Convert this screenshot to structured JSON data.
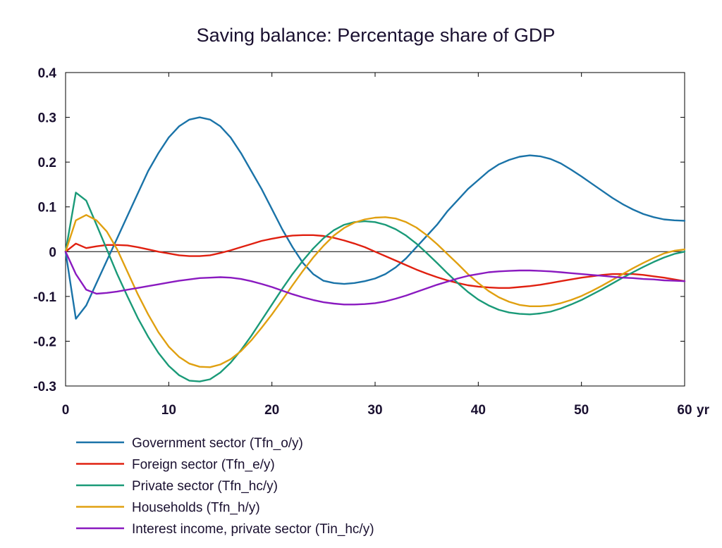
{
  "chart_data": {
    "type": "line",
    "title": "Saving balance: Percentage share of GDP",
    "xlabel": "",
    "ylabel": "",
    "x_unit_label": "yr",
    "xlim": [
      0,
      60
    ],
    "ylim": [
      -0.3,
      0.4
    ],
    "x_ticks": [
      "0",
      "10",
      "20",
      "30",
      "40",
      "50",
      "60"
    ],
    "y_ticks": [
      "0.4",
      "0.3",
      "0.2",
      "0.1",
      "0",
      "-0.1",
      "-0.2",
      "-0.3"
    ],
    "zero_line": true,
    "grid": false,
    "legend_position": "bottom",
    "series": [
      {
        "name": "Government sector (Tfn_o/y)",
        "color": "#1a73a8",
        "points": [
          [
            0,
            0
          ],
          [
            1,
            -0.15
          ],
          [
            2,
            -0.12
          ],
          [
            3,
            -0.07
          ],
          [
            4,
            -0.02
          ],
          [
            5,
            0.03
          ],
          [
            6,
            0.08
          ],
          [
            7,
            0.13
          ],
          [
            8,
            0.18
          ],
          [
            9,
            0.22
          ],
          [
            10,
            0.255
          ],
          [
            11,
            0.28
          ],
          [
            12,
            0.295
          ],
          [
            13,
            0.3
          ],
          [
            14,
            0.295
          ],
          [
            15,
            0.28
          ],
          [
            16,
            0.255
          ],
          [
            17,
            0.22
          ],
          [
            18,
            0.18
          ],
          [
            19,
            0.14
          ],
          [
            20,
            0.095
          ],
          [
            21,
            0.05
          ],
          [
            22,
            0.01
          ],
          [
            23,
            -0.025
          ],
          [
            24,
            -0.05
          ],
          [
            25,
            -0.065
          ],
          [
            26,
            -0.07
          ],
          [
            27,
            -0.072
          ],
          [
            28,
            -0.07
          ],
          [
            29,
            -0.066
          ],
          [
            30,
            -0.06
          ],
          [
            31,
            -0.05
          ],
          [
            32,
            -0.035
          ],
          [
            33,
            -0.015
          ],
          [
            34,
            0.01
          ],
          [
            35,
            0.035
          ],
          [
            36,
            0.06
          ],
          [
            37,
            0.09
          ],
          [
            38,
            0.115
          ],
          [
            39,
            0.14
          ],
          [
            40,
            0.16
          ],
          [
            41,
            0.18
          ],
          [
            42,
            0.195
          ],
          [
            43,
            0.205
          ],
          [
            44,
            0.212
          ],
          [
            45,
            0.215
          ],
          [
            46,
            0.213
          ],
          [
            47,
            0.207
          ],
          [
            48,
            0.197
          ],
          [
            49,
            0.183
          ],
          [
            50,
            0.168
          ],
          [
            51,
            0.152
          ],
          [
            52,
            0.136
          ],
          [
            53,
            0.12
          ],
          [
            54,
            0.106
          ],
          [
            55,
            0.094
          ],
          [
            56,
            0.084
          ],
          [
            57,
            0.077
          ],
          [
            58,
            0.072
          ],
          [
            59,
            0.07
          ],
          [
            60,
            0.069
          ]
        ]
      },
      {
        "name": "Foreign sector (Tfn_e/y)",
        "color": "#e02010",
        "points": [
          [
            0,
            0
          ],
          [
            1,
            0.018
          ],
          [
            2,
            0.008
          ],
          [
            3,
            0.012
          ],
          [
            4,
            0.015
          ],
          [
            5,
            0.015
          ],
          [
            6,
            0.014
          ],
          [
            7,
            0.01
          ],
          [
            8,
            0.005
          ],
          [
            9,
            0
          ],
          [
            10,
            -0.004
          ],
          [
            11,
            -0.008
          ],
          [
            12,
            -0.01
          ],
          [
            13,
            -0.01
          ],
          [
            14,
            -0.008
          ],
          [
            15,
            -0.003
          ],
          [
            16,
            0.003
          ],
          [
            17,
            0.01
          ],
          [
            18,
            0.017
          ],
          [
            19,
            0.024
          ],
          [
            20,
            0.029
          ],
          [
            21,
            0.033
          ],
          [
            22,
            0.036
          ],
          [
            23,
            0.037
          ],
          [
            24,
            0.037
          ],
          [
            25,
            0.035
          ],
          [
            26,
            0.031
          ],
          [
            27,
            0.025
          ],
          [
            28,
            0.018
          ],
          [
            29,
            0.01
          ],
          [
            30,
            0
          ],
          [
            31,
            -0.01
          ],
          [
            32,
            -0.02
          ],
          [
            33,
            -0.03
          ],
          [
            34,
            -0.04
          ],
          [
            35,
            -0.049
          ],
          [
            36,
            -0.057
          ],
          [
            37,
            -0.064
          ],
          [
            38,
            -0.07
          ],
          [
            39,
            -0.075
          ],
          [
            40,
            -0.078
          ],
          [
            41,
            -0.08
          ],
          [
            42,
            -0.081
          ],
          [
            43,
            -0.081
          ],
          [
            44,
            -0.079
          ],
          [
            45,
            -0.077
          ],
          [
            46,
            -0.074
          ],
          [
            47,
            -0.07
          ],
          [
            48,
            -0.066
          ],
          [
            49,
            -0.062
          ],
          [
            50,
            -0.058
          ],
          [
            51,
            -0.055
          ],
          [
            52,
            -0.052
          ],
          [
            53,
            -0.05
          ],
          [
            54,
            -0.05
          ],
          [
            55,
            -0.05
          ],
          [
            56,
            -0.052
          ],
          [
            57,
            -0.055
          ],
          [
            58,
            -0.058
          ],
          [
            59,
            -0.062
          ],
          [
            60,
            -0.066
          ]
        ]
      },
      {
        "name": "Private sector (Tfn_hc/y)",
        "color": "#1a9a78",
        "points": [
          [
            0,
            0
          ],
          [
            1,
            0.132
          ],
          [
            2,
            0.114
          ],
          [
            3,
            0.06
          ],
          [
            4,
            0.005
          ],
          [
            5,
            -0.05
          ],
          [
            6,
            -0.1
          ],
          [
            7,
            -0.148
          ],
          [
            8,
            -0.19
          ],
          [
            9,
            -0.226
          ],
          [
            10,
            -0.255
          ],
          [
            11,
            -0.276
          ],
          [
            12,
            -0.288
          ],
          [
            13,
            -0.29
          ],
          [
            14,
            -0.285
          ],
          [
            15,
            -0.27
          ],
          [
            16,
            -0.248
          ],
          [
            17,
            -0.22
          ],
          [
            18,
            -0.188
          ],
          [
            19,
            -0.153
          ],
          [
            20,
            -0.118
          ],
          [
            21,
            -0.083
          ],
          [
            22,
            -0.05
          ],
          [
            23,
            -0.02
          ],
          [
            24,
            0.007
          ],
          [
            25,
            0.03
          ],
          [
            26,
            0.048
          ],
          [
            27,
            0.06
          ],
          [
            28,
            0.066
          ],
          [
            29,
            0.068
          ],
          [
            30,
            0.066
          ],
          [
            31,
            0.06
          ],
          [
            32,
            0.05
          ],
          [
            33,
            0.036
          ],
          [
            34,
            0.018
          ],
          [
            35,
            -0.003
          ],
          [
            36,
            -0.025
          ],
          [
            37,
            -0.048
          ],
          [
            38,
            -0.07
          ],
          [
            39,
            -0.09
          ],
          [
            40,
            -0.107
          ],
          [
            41,
            -0.12
          ],
          [
            42,
            -0.13
          ],
          [
            43,
            -0.136
          ],
          [
            44,
            -0.139
          ],
          [
            45,
            -0.14
          ],
          [
            46,
            -0.138
          ],
          [
            47,
            -0.134
          ],
          [
            48,
            -0.127
          ],
          [
            49,
            -0.118
          ],
          [
            50,
            -0.108
          ],
          [
            51,
            -0.096
          ],
          [
            52,
            -0.084
          ],
          [
            53,
            -0.071
          ],
          [
            54,
            -0.058
          ],
          [
            55,
            -0.046
          ],
          [
            56,
            -0.034
          ],
          [
            57,
            -0.023
          ],
          [
            58,
            -0.013
          ],
          [
            59,
            -0.005
          ],
          [
            60,
            0
          ]
        ]
      },
      {
        "name": "Households (Tfn_h/y)",
        "color": "#e0a010",
        "points": [
          [
            0,
            0
          ],
          [
            1,
            0.07
          ],
          [
            2,
            0.082
          ],
          [
            3,
            0.07
          ],
          [
            4,
            0.045
          ],
          [
            5,
            0.005
          ],
          [
            6,
            -0.045
          ],
          [
            7,
            -0.095
          ],
          [
            8,
            -0.14
          ],
          [
            9,
            -0.18
          ],
          [
            10,
            -0.212
          ],
          [
            11,
            -0.235
          ],
          [
            12,
            -0.25
          ],
          [
            13,
            -0.257
          ],
          [
            14,
            -0.258
          ],
          [
            15,
            -0.252
          ],
          [
            16,
            -0.24
          ],
          [
            17,
            -0.222
          ],
          [
            18,
            -0.198
          ],
          [
            19,
            -0.17
          ],
          [
            20,
            -0.14
          ],
          [
            21,
            -0.108
          ],
          [
            22,
            -0.075
          ],
          [
            23,
            -0.043
          ],
          [
            24,
            -0.013
          ],
          [
            25,
            0.013
          ],
          [
            26,
            0.036
          ],
          [
            27,
            0.053
          ],
          [
            28,
            0.065
          ],
          [
            29,
            0.072
          ],
          [
            30,
            0.076
          ],
          [
            31,
            0.077
          ],
          [
            32,
            0.074
          ],
          [
            33,
            0.066
          ],
          [
            34,
            0.054
          ],
          [
            35,
            0.037
          ],
          [
            36,
            0.017
          ],
          [
            37,
            -0.005
          ],
          [
            38,
            -0.027
          ],
          [
            39,
            -0.05
          ],
          [
            40,
            -0.07
          ],
          [
            41,
            -0.088
          ],
          [
            42,
            -0.102
          ],
          [
            43,
            -0.112
          ],
          [
            44,
            -0.119
          ],
          [
            45,
            -0.122
          ],
          [
            46,
            -0.122
          ],
          [
            47,
            -0.12
          ],
          [
            48,
            -0.115
          ],
          [
            49,
            -0.108
          ],
          [
            50,
            -0.099
          ],
          [
            51,
            -0.088
          ],
          [
            52,
            -0.076
          ],
          [
            53,
            -0.063
          ],
          [
            54,
            -0.05
          ],
          [
            55,
            -0.037
          ],
          [
            56,
            -0.025
          ],
          [
            57,
            -0.014
          ],
          [
            58,
            -0.004
          ],
          [
            59,
            0.002
          ],
          [
            60,
            0.005
          ]
        ]
      },
      {
        "name": "Interest income, private sector (Tin_hc/y)",
        "color": "#8a1ac0",
        "points": [
          [
            0,
            0
          ],
          [
            1,
            -0.05
          ],
          [
            2,
            -0.085
          ],
          [
            3,
            -0.094
          ],
          [
            4,
            -0.092
          ],
          [
            5,
            -0.089
          ],
          [
            6,
            -0.085
          ],
          [
            7,
            -0.081
          ],
          [
            8,
            -0.077
          ],
          [
            9,
            -0.073
          ],
          [
            10,
            -0.069
          ],
          [
            11,
            -0.065
          ],
          [
            12,
            -0.062
          ],
          [
            13,
            -0.059
          ],
          [
            14,
            -0.058
          ],
          [
            15,
            -0.057
          ],
          [
            16,
            -0.058
          ],
          [
            17,
            -0.061
          ],
          [
            18,
            -0.066
          ],
          [
            19,
            -0.072
          ],
          [
            20,
            -0.079
          ],
          [
            21,
            -0.087
          ],
          [
            22,
            -0.095
          ],
          [
            23,
            -0.102
          ],
          [
            24,
            -0.108
          ],
          [
            25,
            -0.113
          ],
          [
            26,
            -0.116
          ],
          [
            27,
            -0.118
          ],
          [
            28,
            -0.118
          ],
          [
            29,
            -0.117
          ],
          [
            30,
            -0.115
          ],
          [
            31,
            -0.111
          ],
          [
            32,
            -0.105
          ],
          [
            33,
            -0.098
          ],
          [
            34,
            -0.09
          ],
          [
            35,
            -0.082
          ],
          [
            36,
            -0.074
          ],
          [
            37,
            -0.067
          ],
          [
            38,
            -0.06
          ],
          [
            39,
            -0.054
          ],
          [
            40,
            -0.05
          ],
          [
            41,
            -0.046
          ],
          [
            42,
            -0.044
          ],
          [
            43,
            -0.043
          ],
          [
            44,
            -0.042
          ],
          [
            45,
            -0.042
          ],
          [
            46,
            -0.043
          ],
          [
            47,
            -0.044
          ],
          [
            48,
            -0.046
          ],
          [
            49,
            -0.048
          ],
          [
            50,
            -0.05
          ],
          [
            51,
            -0.052
          ],
          [
            52,
            -0.054
          ],
          [
            53,
            -0.056
          ],
          [
            54,
            -0.058
          ],
          [
            55,
            -0.059
          ],
          [
            56,
            -0.061
          ],
          [
            57,
            -0.062
          ],
          [
            58,
            -0.064
          ],
          [
            59,
            -0.065
          ],
          [
            60,
            -0.066
          ]
        ]
      }
    ]
  }
}
